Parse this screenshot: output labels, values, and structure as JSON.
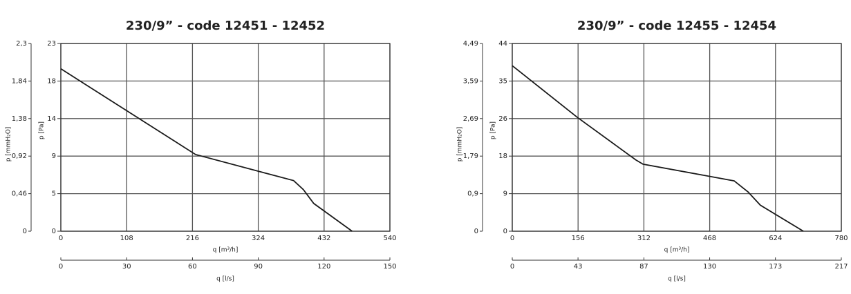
{
  "chart_data": [
    {
      "type": "line",
      "title": "230/9” - code 12451 - 12452",
      "xlabel": "q [m³/h]",
      "ylabel": "p [Pa]",
      "y2label": "p [mmH₂O]",
      "x2label": "q [l/s]",
      "x": [
        0,
        221,
        382,
        398,
        415,
        478
      ],
      "values": [
        19.9,
        9.4,
        6.2,
        5.1,
        3.4,
        0
      ],
      "color": "#1a1a1a",
      "xlim": [
        0,
        540
      ],
      "xticks": [
        0,
        108,
        216,
        324,
        432,
        540
      ],
      "ylim": [
        0,
        23
      ],
      "yticks": [
        0,
        {
          "value": 4.6,
          "label": "5"
        },
        {
          "value": 9.2,
          "label": "9"
        },
        {
          "value": 13.8,
          "label": "14"
        },
        {
          "value": 18.4,
          "label": "18"
        },
        23
      ],
      "y2lim": [
        0,
        2.3
      ],
      "y2ticks": [
        0,
        {
          "value": 0.46,
          "label": "0,46"
        },
        {
          "value": 0.92,
          "label": "0,92"
        },
        {
          "value": 1.38,
          "label": "1,38"
        },
        {
          "value": 1.84,
          "label": "1,84"
        },
        {
          "value": 2.3,
          "label": "2,3"
        }
      ],
      "x2lim": [
        0,
        150
      ],
      "x2ticks": [
        0,
        30,
        60,
        90,
        120,
        150
      ],
      "grid": true
    },
    {
      "type": "line",
      "title": "230/9” - code 12455 - 12454",
      "xlabel": "q [m³/h]",
      "ylabel": "p [Pa]",
      "y2label": "p [mmH₂O]",
      "x2label": "q [l/s]",
      "x": [
        0,
        154,
        293,
        310,
        526,
        559,
        588,
        690
      ],
      "values": [
        38.8,
        26.7,
        16.7,
        15.7,
        11.8,
        9.2,
        6.1,
        0
      ],
      "color": "#1a1a1a",
      "xlim": [
        0,
        780
      ],
      "xticks": [
        0,
        156,
        312,
        468,
        624,
        780
      ],
      "ylim": [
        0,
        44
      ],
      "yticks": [
        0,
        {
          "value": 8.8,
          "label": "9"
        },
        {
          "value": 17.6,
          "label": "18"
        },
        {
          "value": 26.4,
          "label": "26"
        },
        {
          "value": 35.2,
          "label": "35"
        },
        44
      ],
      "y2lim": [
        0,
        4.485
      ],
      "y2ticks": [
        0,
        {
          "value": 0.897,
          "label": "0,9"
        },
        {
          "value": 1.794,
          "label": "1,79"
        },
        {
          "value": 2.691,
          "label": "2,69"
        },
        {
          "value": 3.588,
          "label": "3,59"
        },
        {
          "value": 4.485,
          "label": "4,49"
        }
      ],
      "x2lim": [
        0,
        216.7
      ],
      "x2ticks": [
        0,
        {
          "value": 43.3,
          "label": "43"
        },
        {
          "value": 86.7,
          "label": "87"
        },
        130,
        {
          "value": 173.3,
          "label": "173"
        },
        {
          "value": 216.7,
          "label": "217"
        }
      ],
      "grid": true
    }
  ]
}
